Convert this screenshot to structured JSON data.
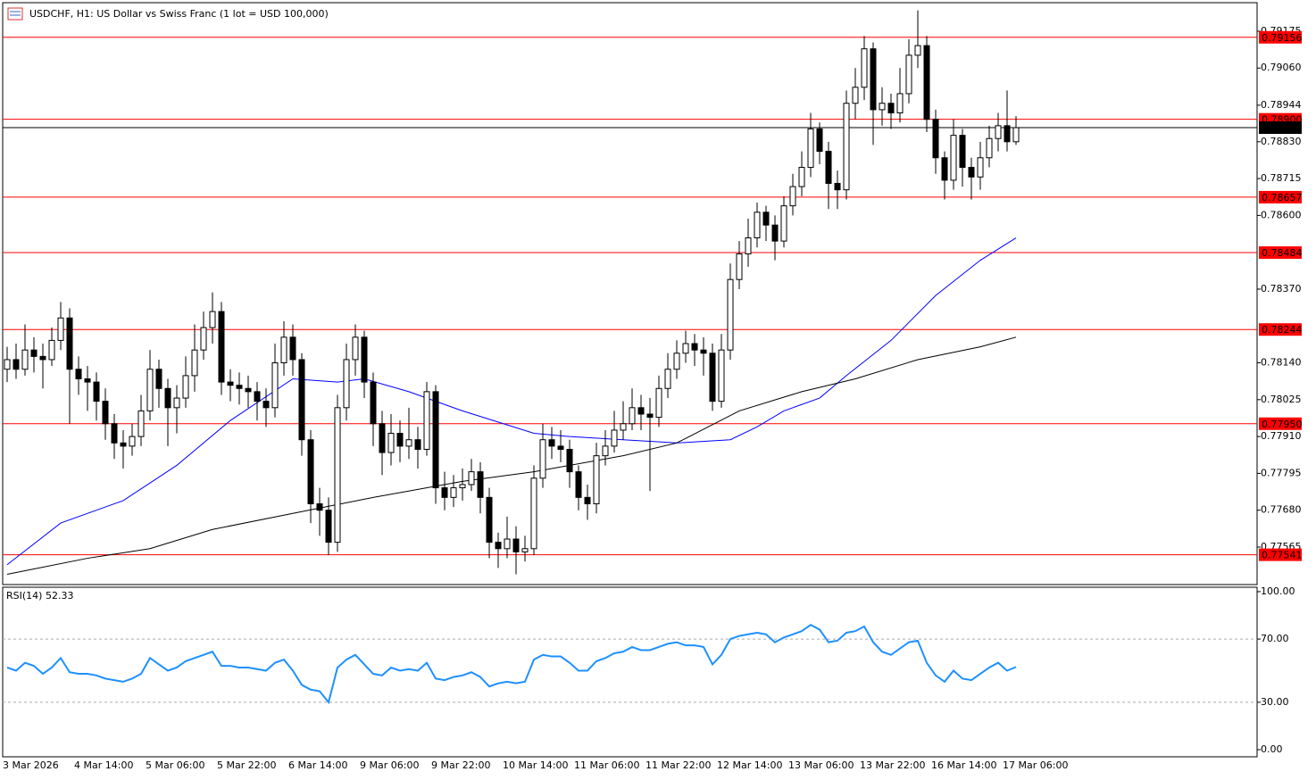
{
  "chart_data": [
    {
      "type": "candlestick",
      "title": "USDCHF, H1:  US Dollar vs Swiss Franc (1 lot = USD 100,000)",
      "up_color": "#ffffff",
      "down_color": "#000000",
      "ylim": [
        0.77448,
        0.79264
      ],
      "yticks": [
        0.79175,
        {
          "value": 0.7906,
          "label": "0.79060"
        },
        0.78944,
        {
          "value": 0.7883,
          "label": "0.78830"
        },
        0.78715,
        {
          "value": 0.786,
          "label": "0.78600"
        },
        {
          "value": 0.7837,
          "label": "0.78370"
        },
        {
          "value": 0.7814,
          "label": "0.78140"
        },
        0.78025,
        {
          "value": 0.7791,
          "label": "0.77910"
        },
        0.77795,
        {
          "value": 0.7768,
          "label": "0.77680"
        },
        0.77565
      ],
      "x_labels": [
        "3 Mar 2026",
        "4 Mar 14:00",
        "5 Mar 06:00",
        "5 Mar 22:00",
        "6 Mar 14:00",
        "9 Mar 06:00",
        "9 Mar 22:00",
        "10 Mar 14:00",
        "11 Mar 06:00",
        "11 Mar 22:00",
        "12 Mar 14:00",
        "13 Mar 06:00",
        "13 Mar 22:00",
        "16 Mar 14:00",
        "17 Mar 06:00"
      ],
      "levels": [
        {
          "value": 0.79156,
          "color": "#ff0000"
        },
        {
          "value": 0.789,
          "label": "0.78900",
          "color": "#ff0000"
        },
        {
          "value": 0.78874,
          "color": "#000000"
        },
        {
          "value": 0.78657,
          "color": "#ff0000"
        },
        {
          "value": 0.78484,
          "color": "#ff0000"
        },
        {
          "value": 0.78244,
          "color": "#ff0000"
        },
        {
          "value": 0.7795,
          "label": "0.77950",
          "color": "#ff0000"
        },
        {
          "value": 0.77541,
          "color": "#ff0000"
        }
      ],
      "lines": [
        {
          "color": "#0000ff",
          "x": [
            0,
            6,
            13,
            19,
            25,
            32,
            37,
            40,
            45,
            51,
            59,
            63,
            69,
            75,
            81,
            84,
            87,
            91,
            94,
            99,
            104,
            109,
            113
          ],
          "values": [
            0.7751,
            0.7764,
            0.7771,
            0.7782,
            0.7796,
            0.7809,
            0.7808,
            0.7809,
            0.7805,
            0.7799,
            0.7792,
            0.7791,
            0.779,
            0.7789,
            0.779,
            0.7794,
            0.7799,
            0.7803,
            0.781,
            0.7821,
            0.7835,
            0.7846,
            0.7853
          ]
        },
        {
          "color": "#000000",
          "x": [
            0,
            9,
            16,
            23,
            32,
            41,
            51,
            59,
            69,
            75,
            82,
            89,
            95,
            102,
            109,
            113
          ],
          "values": [
            0.7748,
            0.7753,
            0.7756,
            0.7762,
            0.7767,
            0.7772,
            0.7777,
            0.778,
            0.7785,
            0.7789,
            0.7799,
            0.7805,
            0.7809,
            0.7815,
            0.7819,
            0.7822
          ]
        }
      ],
      "candles": [
        [
          0.7812,
          0.7819,
          0.7808,
          0.7815
        ],
        [
          0.7815,
          0.782,
          0.7809,
          0.7812
        ],
        [
          0.7812,
          0.7826,
          0.781,
          0.7818
        ],
        [
          0.7818,
          0.7822,
          0.7811,
          0.7816
        ],
        [
          0.7816,
          0.782,
          0.7806,
          0.7815
        ],
        [
          0.7815,
          0.7825,
          0.7813,
          0.7821
        ],
        [
          0.7821,
          0.7833,
          0.7818,
          0.7828
        ],
        [
          0.7828,
          0.7831,
          0.7795,
          0.7812
        ],
        [
          0.7812,
          0.7816,
          0.7804,
          0.7809
        ],
        [
          0.7809,
          0.7813,
          0.7799,
          0.7808
        ],
        [
          0.7808,
          0.7811,
          0.7796,
          0.7802
        ],
        [
          0.7802,
          0.7806,
          0.779,
          0.7795
        ],
        [
          0.7795,
          0.7798,
          0.7784,
          0.7789
        ],
        [
          0.7789,
          0.7793,
          0.7781,
          0.7788
        ],
        [
          0.7788,
          0.7795,
          0.7785,
          0.7791
        ],
        [
          0.7791,
          0.7804,
          0.7788,
          0.7799
        ],
        [
          0.7799,
          0.7818,
          0.7796,
          0.7812
        ],
        [
          0.7812,
          0.7815,
          0.78,
          0.7806
        ],
        [
          0.7806,
          0.7809,
          0.7788,
          0.78
        ],
        [
          0.78,
          0.7807,
          0.7792,
          0.7803
        ],
        [
          0.7803,
          0.7816,
          0.78,
          0.781
        ],
        [
          0.781,
          0.7826,
          0.7805,
          0.7818
        ],
        [
          0.7818,
          0.783,
          0.7815,
          0.7825
        ],
        [
          0.7825,
          0.7836,
          0.782,
          0.783
        ],
        [
          0.783,
          0.7833,
          0.7804,
          0.7808
        ],
        [
          0.7808,
          0.7812,
          0.7802,
          0.7807
        ],
        [
          0.7807,
          0.7811,
          0.7801,
          0.7806
        ],
        [
          0.7806,
          0.781,
          0.78,
          0.7805
        ],
        [
          0.7805,
          0.7808,
          0.7796,
          0.7802
        ],
        [
          0.7802,
          0.7806,
          0.7794,
          0.78
        ],
        [
          0.78,
          0.782,
          0.7797,
          0.7814
        ],
        [
          0.7814,
          0.7827,
          0.781,
          0.7822
        ],
        [
          0.7822,
          0.7826,
          0.781,
          0.7815
        ],
        [
          0.7815,
          0.7817,
          0.7785,
          0.779
        ],
        [
          0.779,
          0.7793,
          0.7764,
          0.777
        ],
        [
          0.777,
          0.7775,
          0.776,
          0.7768
        ],
        [
          0.7768,
          0.7772,
          0.7754,
          0.7758
        ],
        [
          0.7758,
          0.7804,
          0.7755,
          0.78
        ],
        [
          0.78,
          0.782,
          0.7796,
          0.7815
        ],
        [
          0.7815,
          0.7826,
          0.781,
          0.7822
        ],
        [
          0.7822,
          0.7824,
          0.7803,
          0.7808
        ],
        [
          0.7808,
          0.7811,
          0.7788,
          0.7795
        ],
        [
          0.7795,
          0.7799,
          0.7779,
          0.7786
        ],
        [
          0.7786,
          0.7798,
          0.7782,
          0.7792
        ],
        [
          0.7792,
          0.7796,
          0.7783,
          0.7788
        ],
        [
          0.7788,
          0.78,
          0.7784,
          0.779
        ],
        [
          0.779,
          0.7794,
          0.7781,
          0.7787
        ],
        [
          0.7787,
          0.7808,
          0.7785,
          0.7805
        ],
        [
          0.7805,
          0.7807,
          0.777,
          0.7775
        ],
        [
          0.7775,
          0.778,
          0.7768,
          0.7772
        ],
        [
          0.7772,
          0.7779,
          0.7769,
          0.7775
        ],
        [
          0.7775,
          0.7781,
          0.7771,
          0.7776
        ],
        [
          0.7776,
          0.7784,
          0.7774,
          0.778
        ],
        [
          0.778,
          0.7783,
          0.7767,
          0.7772
        ],
        [
          0.7772,
          0.7775,
          0.7753,
          0.7758
        ],
        [
          0.7758,
          0.7761,
          0.775,
          0.7756
        ],
        [
          0.7756,
          0.7766,
          0.7753,
          0.7759
        ],
        [
          0.7759,
          0.7763,
          0.7748,
          0.7755
        ],
        [
          0.7755,
          0.776,
          0.7752,
          0.7756
        ],
        [
          0.7756,
          0.7782,
          0.7754,
          0.7778
        ],
        [
          0.7778,
          0.7795,
          0.7775,
          0.779
        ],
        [
          0.779,
          0.7794,
          0.7784,
          0.7788
        ],
        [
          0.7788,
          0.7793,
          0.7783,
          0.7787
        ],
        [
          0.7787,
          0.779,
          0.7775,
          0.778
        ],
        [
          0.778,
          0.7782,
          0.7768,
          0.7772
        ],
        [
          0.7772,
          0.7776,
          0.7765,
          0.777
        ],
        [
          0.777,
          0.7789,
          0.7767,
          0.7785
        ],
        [
          0.7785,
          0.7793,
          0.7782,
          0.7788
        ],
        [
          0.7788,
          0.7799,
          0.7786,
          0.7793
        ],
        [
          0.7793,
          0.7802,
          0.779,
          0.7795
        ],
        [
          0.7795,
          0.7806,
          0.7793,
          0.78
        ],
        [
          0.78,
          0.7804,
          0.7793,
          0.7798
        ],
        [
          0.7798,
          0.7803,
          0.7774,
          0.7797
        ],
        [
          0.7797,
          0.781,
          0.7794,
          0.7806
        ],
        [
          0.7806,
          0.7817,
          0.7803,
          0.7812
        ],
        [
          0.7812,
          0.7821,
          0.7809,
          0.7817
        ],
        [
          0.7817,
          0.7824,
          0.7814,
          0.782
        ],
        [
          0.782,
          0.7823,
          0.7813,
          0.7818
        ],
        [
          0.7818,
          0.7822,
          0.781,
          0.7817
        ],
        [
          0.7817,
          0.782,
          0.7799,
          0.7802
        ],
        [
          0.7802,
          0.7823,
          0.78,
          0.7818
        ],
        [
          0.7818,
          0.7845,
          0.7815,
          0.784
        ],
        [
          0.784,
          0.7852,
          0.7837,
          0.7848
        ],
        [
          0.7848,
          0.7859,
          0.7844,
          0.7853
        ],
        [
          0.7853,
          0.7864,
          0.785,
          0.7861
        ],
        [
          0.7861,
          0.7863,
          0.7852,
          0.7857
        ],
        [
          0.7857,
          0.786,
          0.7846,
          0.7852
        ],
        [
          0.7852,
          0.7866,
          0.785,
          0.7863
        ],
        [
          0.7863,
          0.7873,
          0.786,
          0.7869
        ],
        [
          0.7869,
          0.788,
          0.7866,
          0.7875
        ],
        [
          0.7875,
          0.7892,
          0.7872,
          0.7887
        ],
        [
          0.7887,
          0.7889,
          0.7876,
          0.788
        ],
        [
          0.788,
          0.7883,
          0.7862,
          0.787
        ],
        [
          0.787,
          0.7874,
          0.7862,
          0.7868
        ],
        [
          0.7868,
          0.7899,
          0.7865,
          0.7895
        ],
        [
          0.7895,
          0.7906,
          0.789,
          0.79
        ],
        [
          0.79,
          0.7916,
          0.7896,
          0.7912
        ],
        [
          0.7912,
          0.7914,
          0.7882,
          0.7893
        ],
        [
          0.7893,
          0.79,
          0.7888,
          0.7895
        ],
        [
          0.7895,
          0.7898,
          0.7887,
          0.7892
        ],
        [
          0.7892,
          0.7906,
          0.7889,
          0.7898
        ],
        [
          0.7898,
          0.7915,
          0.7895,
          0.791
        ],
        [
          0.791,
          0.7924,
          0.7906,
          0.7913
        ],
        [
          0.7913,
          0.7916,
          0.7886,
          0.789
        ],
        [
          0.789,
          0.7893,
          0.7873,
          0.7878
        ],
        [
          0.7878,
          0.788,
          0.7865,
          0.7871
        ],
        [
          0.7871,
          0.789,
          0.7868,
          0.7885
        ],
        [
          0.7885,
          0.7887,
          0.7869,
          0.7875
        ],
        [
          0.7875,
          0.7878,
          0.7865,
          0.7872
        ],
        [
          0.7872,
          0.7883,
          0.7868,
          0.7878
        ],
        [
          0.7878,
          0.7888,
          0.7875,
          0.7884
        ],
        [
          0.7884,
          0.7892,
          0.788,
          0.7888
        ],
        [
          0.7888,
          0.7899,
          0.788,
          0.7883
        ],
        [
          0.7883,
          0.7891,
          0.7882,
          0.78874
        ]
      ]
    },
    {
      "type": "line",
      "title": "RSI(14) 52.33",
      "color": "#1e90ff",
      "ylim": [
        -4.5,
        102.8
      ],
      "yticks": [
        {
          "value": 100,
          "label": "100.00"
        },
        {
          "value": 70,
          "label": "70.00"
        },
        {
          "value": 30,
          "label": "30.00"
        },
        {
          "value": 0,
          "label": "0.00"
        }
      ],
      "dashed_levels": [
        70,
        30
      ],
      "values": [
        52,
        50,
        55,
        53,
        48,
        52,
        58,
        49,
        48,
        48,
        47,
        45,
        44,
        43,
        45,
        48,
        58,
        54,
        50,
        52,
        56,
        58,
        60,
        62,
        53,
        53,
        52,
        52,
        51,
        50,
        55,
        57,
        50,
        41,
        38,
        37,
        30,
        52,
        57,
        60,
        54,
        48,
        47,
        52,
        50,
        51,
        50,
        55,
        45,
        44,
        46,
        47,
        49,
        46,
        40,
        42,
        43,
        42,
        43,
        57,
        60,
        59,
        59,
        55,
        50,
        50,
        56,
        58,
        61,
        62,
        65,
        63,
        63,
        65,
        67,
        68,
        66,
        66,
        65,
        54,
        60,
        70,
        72,
        73,
        74,
        73,
        68,
        71,
        73,
        75,
        79,
        76,
        68,
        69,
        74,
        75,
        78,
        68,
        62,
        60,
        64,
        68,
        69,
        55,
        47,
        43,
        50,
        45,
        44,
        48,
        52,
        55,
        50,
        52.33
      ]
    }
  ]
}
